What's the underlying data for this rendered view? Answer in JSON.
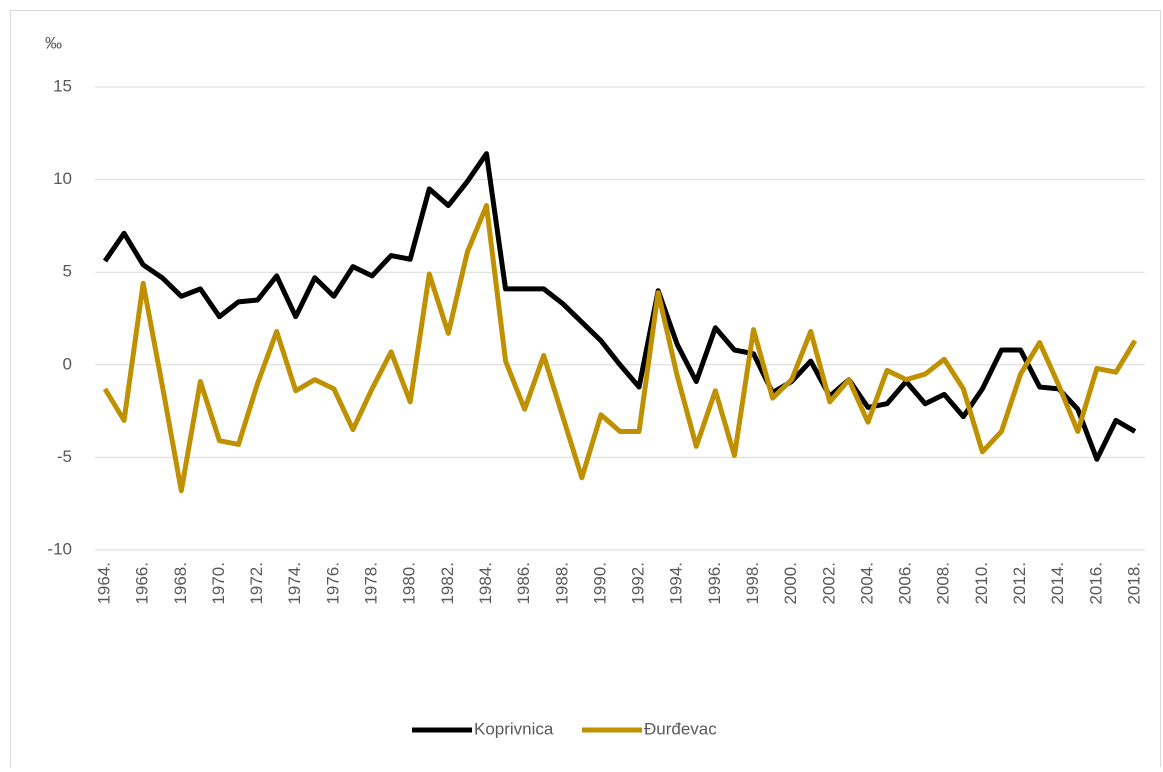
{
  "chart_data": {
    "type": "line",
    "y_label": "‰",
    "categories": [
      "1964.",
      null,
      "1966.",
      null,
      "1968.",
      null,
      "1970.",
      null,
      "1972.",
      null,
      "1974.",
      null,
      "1976.",
      null,
      "1978.",
      null,
      "1980.",
      null,
      "1982.",
      null,
      "1984.",
      null,
      "1986.",
      null,
      "1988.",
      null,
      "1990.",
      null,
      "1992.",
      null,
      "1994.",
      null,
      "1996.",
      null,
      "1998.",
      null,
      "2000.",
      null,
      "2002.",
      null,
      "2004.",
      null,
      "2006.",
      null,
      "2008.",
      null,
      "2010.",
      null,
      "2012.",
      null,
      "2014.",
      null,
      "2016.",
      null,
      "2018."
    ],
    "series": [
      {
        "name": "Koprivnica",
        "color": "#000000",
        "values": [
          5.6,
          7.1,
          5.4,
          4.7,
          3.7,
          4.1,
          2.6,
          3.4,
          3.5,
          4.8,
          2.6,
          4.7,
          3.7,
          5.3,
          4.8,
          5.9,
          5.7,
          9.5,
          8.6,
          9.9,
          11.4,
          4.1,
          4.1,
          4.1,
          3.3,
          2.3,
          1.3,
          0,
          -1.2,
          4.0,
          1.1,
          -0.9,
          2.0,
          0.8,
          0.6,
          -1.5,
          -0.9,
          0.2,
          -1.7,
          -0.8,
          -2.3,
          -2.1,
          -0.9,
          -2.1,
          -1.6,
          -2.8,
          -1.3,
          0.8,
          0.8,
          -1.2,
          -1.3,
          -2.4,
          -5.1,
          -3.0,
          -3.6
        ]
      },
      {
        "name": "Đurđevac",
        "color": "#bf9000",
        "values": [
          -1.3,
          -3.0,
          4.4,
          -1.1,
          -6.8,
          -0.9,
          -4.1,
          -4.3,
          -1.0,
          1.8,
          -1.4,
          -0.8,
          -1.3,
          -3.5,
          -1.3,
          0.7,
          -2.0,
          4.9,
          1.7,
          6.1,
          8.6,
          0.2,
          -2.4,
          0.5,
          -2.8,
          -6.1,
          -2.7,
          -3.6,
          -3.6,
          3.9,
          -0.6,
          -4.4,
          -1.4,
          -4.9,
          1.9,
          -1.8,
          -0.8,
          1.8,
          -2.0,
          -0.8,
          -3.1,
          -0.3,
          -0.8,
          -0.5,
          0.3,
          -1.3,
          -4.7,
          -3.6,
          -0.5,
          1.2,
          -1.1,
          -3.6,
          -0.2,
          -0.4,
          1.3
        ]
      }
    ],
    "ylim": [
      -10,
      15
    ],
    "yticks": [
      -10,
      -5,
      0,
      5,
      10,
      15
    ],
    "grid": true,
    "legend": "bottom"
  }
}
